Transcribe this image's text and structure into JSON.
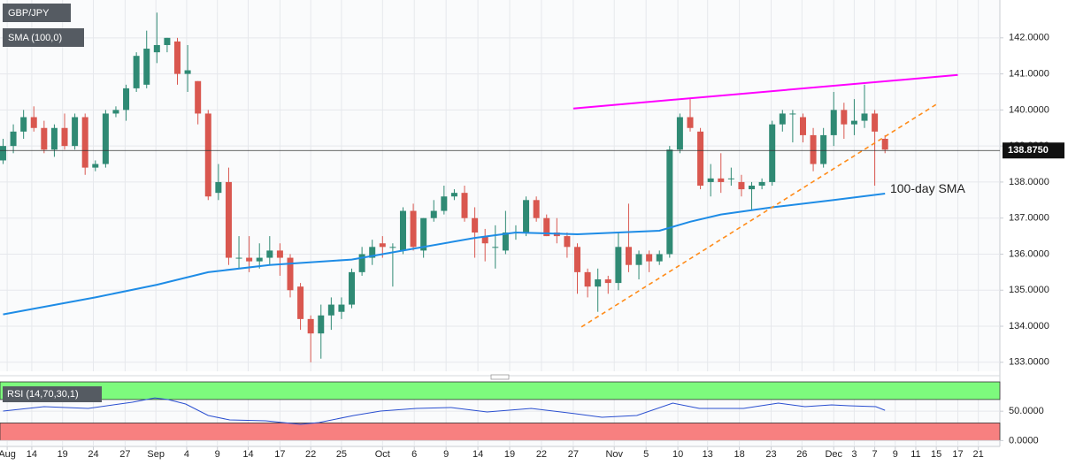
{
  "chart_data": [
    {
      "type": "candlestick",
      "title": "GBP/JPY",
      "xlim": [
        -0.3,
        97.2
      ],
      "ylim": [
        132.75,
        143.05
      ],
      "yticks": [
        {
          "value": 133,
          "label": "133.0000"
        },
        {
          "value": 134,
          "label": "134.0000"
        },
        {
          "value": 135,
          "label": "135.0000"
        },
        {
          "value": 136,
          "label": "136.0000"
        },
        {
          "value": 137,
          "label": "137.0000"
        },
        {
          "value": 138,
          "label": "138.0000"
        },
        {
          "value": 139,
          "label": "139.0000"
        },
        {
          "value": 140,
          "label": "140.0000"
        },
        {
          "value": 141,
          "label": "141.0000"
        },
        {
          "value": 142,
          "label": "142.0000"
        }
      ],
      "grid": true,
      "up_color": "#2f8a74",
      "down_color": "#d9574f",
      "candles": {
        "open": [
          138.6,
          139.0,
          139.4,
          139.8,
          139.5,
          138.9,
          139.5,
          139.0,
          139.8,
          138.4,
          138.5,
          139.9,
          140.0,
          140.6,
          140.7,
          141.6,
          141.8,
          141.9,
          141.0,
          140.8,
          139.9,
          137.7,
          138.0,
          135.9,
          135.9,
          135.8,
          135.9,
          136.1,
          135.9,
          135.1,
          134.2,
          133.8,
          134.3,
          134.4,
          134.6,
          135.5,
          135.9,
          136.3,
          136.2,
          136.1,
          137.2,
          136.1,
          137.0,
          137.2,
          137.6,
          137.7,
          137.0,
          136.5,
          136.2,
          136.1,
          136.6,
          136.6,
          137.5,
          137.0,
          136.6,
          136.5,
          136.2,
          135.5,
          135.1,
          135.3,
          135.2,
          136.2,
          135.7,
          136.0,
          135.8,
          136.0,
          138.9,
          139.8,
          139.4,
          138.0,
          138.1,
          138.1,
          138.0,
          137.8,
          137.9,
          138.0,
          139.6,
          139.9,
          139.8,
          139.3,
          138.5,
          139.3,
          140.0,
          139.6,
          139.7,
          139.9,
          139.2
        ],
        "high": [
          139.2,
          139.6,
          140.0,
          140.1,
          139.7,
          139.6,
          139.9,
          139.9,
          139.9,
          138.6,
          140.0,
          140.1,
          140.7,
          141.6,
          142.2,
          142.7,
          142.0,
          142.0,
          141.8,
          140.8,
          140.0,
          138.5,
          138.4,
          136.5,
          136.5,
          136.3,
          136.5,
          136.3,
          136.0,
          135.2,
          134.3,
          134.6,
          134.8,
          134.8,
          135.6,
          136.2,
          136.4,
          136.5,
          136.3,
          137.3,
          137.4,
          137.0,
          137.5,
          137.9,
          137.8,
          137.9,
          137.3,
          136.7,
          136.8,
          137.2,
          136.8,
          137.6,
          137.6,
          137.1,
          137.0,
          136.6,
          136.3,
          135.6,
          135.6,
          135.4,
          136.6,
          137.4,
          136.1,
          136.1,
          136.1,
          139.0,
          139.9,
          140.3,
          139.5,
          138.5,
          138.8,
          138.4,
          138.2,
          138.0,
          138.1,
          139.7,
          140.0,
          140.0,
          139.9,
          139.5,
          139.5,
          140.5,
          140.2,
          140.3,
          140.7,
          140.0,
          139.3
        ],
        "low": [
          138.5,
          138.8,
          139.2,
          139.4,
          138.8,
          138.7,
          138.9,
          138.9,
          138.2,
          138.3,
          138.4,
          139.8,
          139.7,
          140.5,
          140.6,
          141.3,
          141.6,
          140.7,
          140.5,
          139.6,
          137.5,
          137.5,
          135.7,
          135.6,
          135.5,
          135.6,
          135.7,
          135.4,
          134.8,
          133.9,
          133.0,
          133.1,
          133.9,
          134.2,
          134.5,
          135.4,
          135.7,
          135.9,
          135.1,
          136.0,
          136.1,
          135.9,
          136.9,
          137.1,
          137.5,
          136.9,
          135.9,
          135.8,
          135.6,
          136.0,
          136.4,
          136.5,
          136.9,
          136.5,
          136.3,
          135.9,
          134.9,
          134.8,
          134.4,
          134.9,
          135.0,
          135.5,
          135.3,
          135.5,
          135.7,
          135.9,
          138.8,
          139.4,
          137.8,
          137.6,
          137.7,
          137.9,
          137.6,
          137.2,
          137.8,
          137.9,
          139.4,
          139.1,
          139.1,
          138.3,
          138.4,
          139.0,
          139.2,
          139.3,
          139.5,
          137.9,
          138.8
        ],
        "close": [
          139.0,
          139.4,
          139.8,
          139.5,
          138.9,
          139.5,
          139.0,
          139.8,
          138.4,
          138.5,
          139.9,
          140.0,
          140.6,
          141.5,
          141.7,
          141.8,
          142.0,
          141.0,
          141.1,
          139.9,
          137.6,
          138.0,
          135.9,
          135.9,
          135.8,
          135.9,
          136.1,
          135.9,
          135.0,
          134.2,
          133.8,
          134.3,
          134.6,
          134.6,
          135.5,
          136.0,
          136.2,
          136.2,
          136.2,
          137.2,
          136.2,
          137.0,
          137.2,
          137.6,
          137.7,
          137.0,
          136.6,
          136.3,
          136.2,
          136.6,
          136.6,
          137.5,
          137.0,
          136.5,
          136.5,
          136.2,
          135.5,
          135.1,
          135.3,
          135.2,
          136.2,
          135.7,
          136.0,
          135.8,
          136.0,
          138.9,
          139.8,
          139.5,
          137.9,
          138.1,
          138.0,
          138.1,
          137.8,
          137.9,
          138.0,
          139.6,
          139.9,
          139.9,
          139.3,
          138.5,
          139.3,
          140.0,
          139.6,
          139.7,
          139.9,
          139.4,
          138.9
        ]
      },
      "series": [
        {
          "name": "SMA (100,0)",
          "color": "#1e8ce6",
          "x": [
            0,
            9,
            15,
            20,
            26,
            34,
            39,
            46,
            50,
            56,
            60,
            64,
            67,
            70,
            75,
            81,
            86
          ],
          "values": [
            134.33,
            134.8,
            135.15,
            135.5,
            135.7,
            135.85,
            136.1,
            136.45,
            136.6,
            136.55,
            136.6,
            136.65,
            136.9,
            137.1,
            137.3,
            137.5,
            137.68
          ]
        }
      ],
      "trendlines": [
        {
          "color": "#ff00ff",
          "dash": false,
          "x": [
            55.6,
            93.1
          ],
          "values": [
            140.04,
            140.97
          ]
        },
        {
          "color": "#ff8c1a",
          "dash": true,
          "x": [
            56.4,
            91.2
          ],
          "values": [
            133.98,
            140.19
          ]
        }
      ],
      "annotation": {
        "text": "100-day SMA",
        "x": 86.5,
        "y": 137.6
      },
      "last_price": {
        "value": 138.875,
        "label": "138.8750"
      }
    },
    {
      "type": "line",
      "title": "RSI (14,70,30,1)",
      "xlim": [
        -0.3,
        97.2
      ],
      "ylim": [
        -10,
        100
      ],
      "yticks": [
        {
          "value": 0,
          "label": "0.0000"
        },
        {
          "value": 50,
          "label": "50.0000"
        }
      ],
      "bands": [
        {
          "from": 70,
          "to": 100,
          "color": "#7dfa7d"
        },
        {
          "from": 0,
          "to": 30,
          "color": "#f78080"
        }
      ],
      "xticks": [
        {
          "value": 0.4,
          "label": "Aug"
        },
        {
          "value": 2.8,
          "label": "14"
        },
        {
          "value": 5.8,
          "label": "19"
        },
        {
          "value": 8.8,
          "label": "24"
        },
        {
          "value": 11.9,
          "label": "27"
        },
        {
          "value": 14.9,
          "label": "Sep"
        },
        {
          "value": 17.9,
          "label": "4"
        },
        {
          "value": 20.9,
          "label": "9"
        },
        {
          "value": 23.9,
          "label": "14"
        },
        {
          "value": 27.0,
          "label": "17"
        },
        {
          "value": 30.0,
          "label": "22"
        },
        {
          "value": 33.0,
          "label": "25"
        },
        {
          "value": 37.0,
          "label": "Oct"
        },
        {
          "value": 40.1,
          "label": "6"
        },
        {
          "value": 43.2,
          "label": "9"
        },
        {
          "value": 46.3,
          "label": "14"
        },
        {
          "value": 49.4,
          "label": "19"
        },
        {
          "value": 52.5,
          "label": "22"
        },
        {
          "value": 55.6,
          "label": "27"
        },
        {
          "value": 59.6,
          "label": "Nov"
        },
        {
          "value": 62.7,
          "label": "5"
        },
        {
          "value": 65.8,
          "label": "10"
        },
        {
          "value": 68.7,
          "label": "13"
        },
        {
          "value": 71.8,
          "label": "18"
        },
        {
          "value": 74.9,
          "label": "23"
        },
        {
          "value": 77.9,
          "label": "26"
        },
        {
          "value": 81.0,
          "label": "Dec"
        },
        {
          "value": 83.0,
          "label": "3"
        },
        {
          "value": 85.0,
          "label": "7"
        },
        {
          "value": 87.0,
          "label": "9"
        },
        {
          "value": 89.0,
          "label": "11"
        },
        {
          "value": 91.0,
          "label": "15"
        },
        {
          "value": 93.1,
          "label": "17"
        },
        {
          "value": 95.1,
          "label": "21"
        }
      ],
      "series": [
        {
          "color": "#2a4fd0",
          "x": [
            0,
            4,
            8.3,
            12.6,
            14.8,
            16.1,
            17.8,
            20,
            22.1,
            25.6,
            29,
            30.8,
            34.2,
            36.8,
            40.3,
            43.7,
            47.2,
            51.5,
            55.8,
            58.4,
            61.8,
            65.3,
            67.9,
            72.2,
            75.6,
            78.2,
            80.8,
            82.5,
            85.1,
            86
          ],
          "values": [
            50.2,
            57.8,
            54.8,
            65.3,
            72.8,
            69.8,
            62.3,
            42.7,
            35.2,
            33.7,
            27.6,
            30.7,
            42.7,
            50.2,
            54.8,
            56.3,
            48.7,
            54.8,
            45.7,
            39.7,
            42.7,
            63.8,
            54.8,
            54.8,
            63.8,
            57.8,
            60.8,
            59.3,
            57.8,
            51.7
          ]
        }
      ]
    }
  ]
}
